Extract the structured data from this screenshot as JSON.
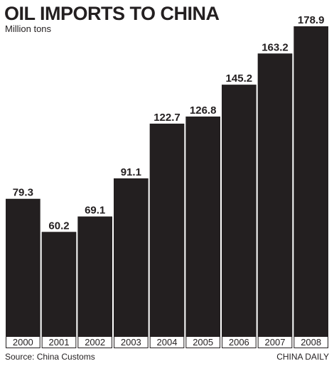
{
  "chart_data": {
    "type": "bar",
    "title": "OIL IMPORTS TO CHINA",
    "subtitle": "Million tons",
    "categories": [
      "2000",
      "2001",
      "2002",
      "2003",
      "2004",
      "2005",
      "2006",
      "2007",
      "2008"
    ],
    "values": [
      79.3,
      60.2,
      69.1,
      91.1,
      122.7,
      126.8,
      145.2,
      163.2,
      178.9
    ],
    "value_labels": [
      "79.3",
      "60.2",
      "69.1",
      "91.1",
      "122.7",
      "126.8",
      "145.2",
      "163.2",
      "178.9"
    ],
    "xlabel": "",
    "ylabel": "",
    "grid": false,
    "legend": "none",
    "bar_color": "#231f20"
  },
  "footer": {
    "source": "Source: China Customs",
    "credit": "CHINA DAILY"
  }
}
